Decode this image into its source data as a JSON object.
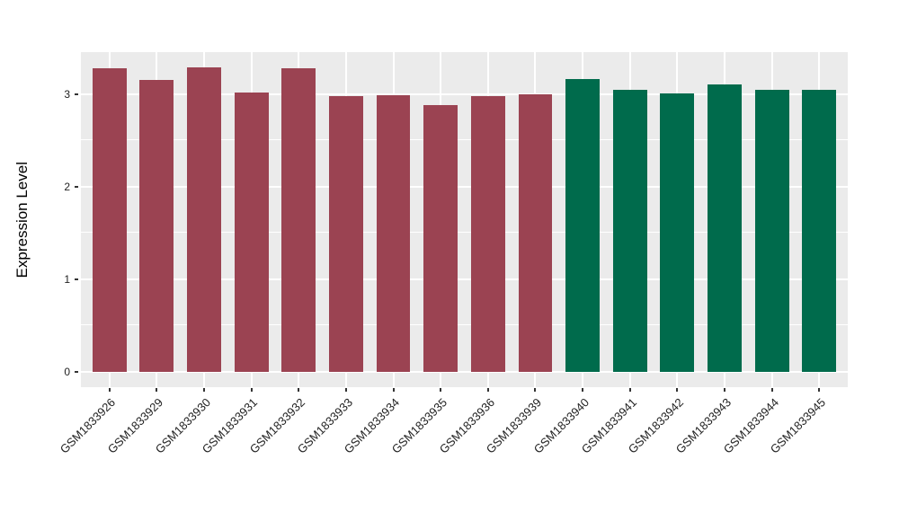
{
  "figure": {
    "background_color": "#FFFFFF"
  },
  "chart_data": {
    "type": "bar",
    "title": "",
    "xlabel": "",
    "ylabel": "Expression Level",
    "categories": [
      "GSM1833926",
      "GSM1833929",
      "GSM1833930",
      "GSM1833931",
      "GSM1833932",
      "GSM1833933",
      "GSM1833934",
      "GSM1833935",
      "GSM1833936",
      "GSM1833939",
      "GSM1833940",
      "GSM1833941",
      "GSM1833942",
      "GSM1833943",
      "GSM1833944",
      "GSM1833945"
    ],
    "values": [
      3.28,
      3.15,
      3.29,
      3.02,
      3.28,
      2.98,
      2.99,
      2.88,
      2.98,
      3.0,
      3.16,
      3.05,
      3.01,
      3.11,
      3.05,
      3.05
    ],
    "bar_colors": [
      "#9B4352",
      "#9B4352",
      "#9B4352",
      "#9B4352",
      "#9B4352",
      "#9B4352",
      "#9B4352",
      "#9B4352",
      "#9B4352",
      "#9B4352",
      "#006B4C",
      "#006B4C",
      "#006B4C",
      "#006B4C",
      "#006B4C",
      "#006B4C"
    ],
    "color_groups": [
      {
        "name": "group-1",
        "color": "#9B4352",
        "first_category": "GSM1833926",
        "last_category": "GSM1833939"
      },
      {
        "name": "group-2",
        "color": "#006B4C",
        "first_category": "GSM1833940",
        "last_category": "GSM1833945"
      }
    ],
    "ytick_labels": [
      "0",
      "1",
      "2",
      "3"
    ],
    "ytick_values": [
      0,
      1,
      2,
      3
    ],
    "minor_gridline_values": [
      0.5,
      1.5,
      2.5
    ],
    "ylim": [
      -0.165,
      3.455
    ],
    "grid": "on",
    "legend": "none",
    "panel_background_color": "#EBEBEB",
    "gridline_color": "#FFFFFF",
    "axis_text_color": "#1F1F1F",
    "x_label_rotation_deg": 45
  }
}
